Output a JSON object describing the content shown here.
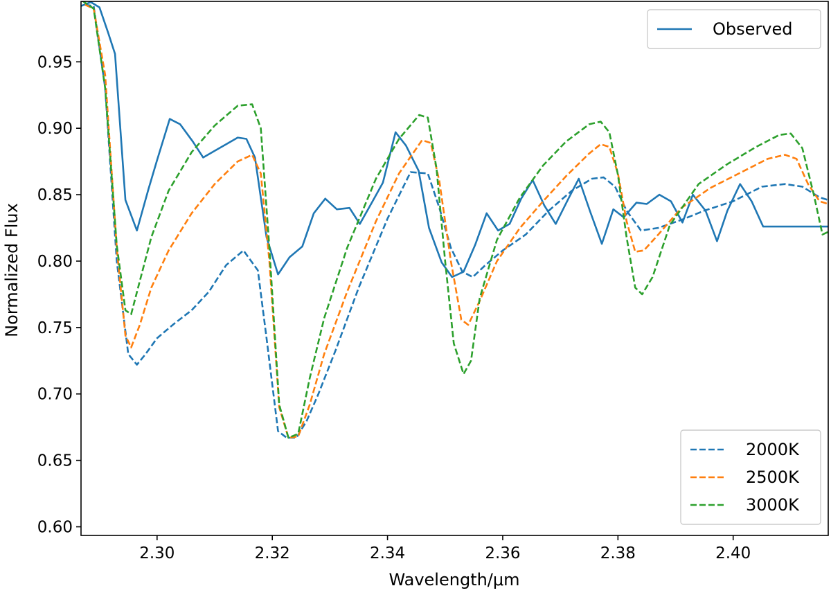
{
  "chart_data": {
    "type": "line",
    "title": "",
    "xlabel": "Wavelength/μm",
    "ylabel": "Normalized Flux",
    "xlim": [
      2.2868,
      2.4165
    ],
    "ylim": [
      0.5935,
      0.9955
    ],
    "grid": false,
    "x_ticks": [
      {
        "value": 2.3,
        "label": "2.30"
      },
      {
        "value": 2.32,
        "label": "2.32"
      },
      {
        "value": 2.34,
        "label": "2.34"
      },
      {
        "value": 2.36,
        "label": "2.36"
      },
      {
        "value": 2.38,
        "label": "2.38"
      },
      {
        "value": 2.4,
        "label": "2.40"
      }
    ],
    "y_ticks": [
      {
        "value": 0.6,
        "label": "0.60"
      },
      {
        "value": 0.65,
        "label": "0.65"
      },
      {
        "value": 0.7,
        "label": "0.70"
      },
      {
        "value": 0.75,
        "label": "0.75"
      },
      {
        "value": 0.8,
        "label": "0.80"
      },
      {
        "value": 0.85,
        "label": "0.85"
      },
      {
        "value": 0.9,
        "label": "0.90"
      },
      {
        "value": 0.95,
        "label": "0.95"
      }
    ],
    "legends": [
      {
        "placement": "top-right",
        "entries": [
          "Observed"
        ]
      },
      {
        "placement": "bottom-right",
        "entries": [
          "2000K",
          "2500K",
          "3000K"
        ]
      }
    ],
    "series": [
      {
        "name": "Observed",
        "style": "solid",
        "color": "#1f77b4",
        "x": [
          2.2868,
          2.2885,
          2.29,
          2.2915,
          2.2927,
          2.2945,
          2.2965,
          2.2985,
          2.3,
          2.3022,
          2.304,
          2.3062,
          2.308,
          2.31,
          2.312,
          2.314,
          2.3155,
          2.317,
          2.319,
          2.321,
          2.323,
          2.3252,
          2.3272,
          2.3292,
          2.3312,
          2.3334,
          2.3352,
          2.3374,
          2.3392,
          2.3414,
          2.3432,
          2.3454,
          2.3472,
          2.3494,
          2.3512,
          2.3532,
          2.3552,
          2.3572,
          2.3592,
          2.3612,
          2.3632,
          2.3652,
          2.3672,
          2.3692,
          2.3714,
          2.3732,
          2.3752,
          2.3772,
          2.3792,
          2.381,
          2.3832,
          2.385,
          2.3872,
          2.3892,
          2.3912,
          2.393,
          2.3952,
          2.3972,
          2.399,
          2.4012,
          2.4032,
          2.4052,
          2.407,
          2.4092,
          2.4112,
          2.413,
          2.4145,
          2.4165
        ],
        "y": [
          0.992,
          0.995,
          0.991,
          0.972,
          0.956,
          0.846,
          0.823,
          0.854,
          0.876,
          0.907,
          0.903,
          0.89,
          0.878,
          0.883,
          0.888,
          0.893,
          0.892,
          0.878,
          0.818,
          0.79,
          0.803,
          0.811,
          0.836,
          0.847,
          0.839,
          0.84,
          0.828,
          0.845,
          0.859,
          0.897,
          0.887,
          0.868,
          0.825,
          0.799,
          0.788,
          0.792,
          0.812,
          0.836,
          0.823,
          0.828,
          0.847,
          0.861,
          0.842,
          0.828,
          0.847,
          0.862,
          0.837,
          0.813,
          0.839,
          0.833,
          0.844,
          0.843,
          0.85,
          0.845,
          0.829,
          0.85,
          0.838,
          0.815,
          0.838,
          0.858,
          0.845,
          0.826,
          0.826,
          0.826,
          0.826,
          0.826,
          0.826,
          0.826
        ]
      },
      {
        "name": "2000K",
        "style": "dashed",
        "color": "#1f77b4",
        "x": [
          2.2875,
          2.289,
          2.291,
          2.293,
          2.295,
          2.2965,
          2.298,
          2.3,
          2.303,
          2.306,
          2.309,
          2.312,
          2.315,
          2.3175,
          2.319,
          2.321,
          2.3225,
          2.3242,
          2.326,
          2.328,
          2.331,
          2.335,
          2.34,
          2.344,
          2.347,
          2.349,
          2.351,
          2.353,
          2.3548,
          2.357,
          2.36,
          2.364,
          2.368,
          2.372,
          2.3755,
          2.3775,
          2.3795,
          2.3815,
          2.384,
          2.387,
          2.391,
          2.395,
          2.4,
          2.405,
          2.409,
          2.412,
          2.415,
          2.4165
        ],
        "y": [
          0.993,
          0.992,
          0.93,
          0.8,
          0.73,
          0.722,
          0.73,
          0.742,
          0.753,
          0.763,
          0.777,
          0.797,
          0.808,
          0.793,
          0.742,
          0.672,
          0.667,
          0.667,
          0.68,
          0.7,
          0.733,
          0.78,
          0.832,
          0.867,
          0.866,
          0.84,
          0.81,
          0.792,
          0.788,
          0.797,
          0.808,
          0.82,
          0.838,
          0.853,
          0.862,
          0.863,
          0.856,
          0.838,
          0.823,
          0.825,
          0.831,
          0.838,
          0.845,
          0.856,
          0.858,
          0.856,
          0.848,
          0.846
        ]
      },
      {
        "name": "2500K",
        "style": "dashed",
        "color": "#ff7f0e",
        "x": [
          2.2875,
          2.289,
          2.291,
          2.293,
          2.2945,
          2.2955,
          2.297,
          2.299,
          2.302,
          2.306,
          2.31,
          2.314,
          2.3165,
          2.318,
          2.3195,
          2.3212,
          2.3228,
          2.3245,
          2.3265,
          2.329,
          2.333,
          2.338,
          2.342,
          2.346,
          2.3475,
          2.349,
          2.351,
          2.3528,
          2.354,
          2.356,
          2.359,
          2.363,
          2.367,
          2.371,
          2.375,
          2.377,
          2.3785,
          2.38,
          2.3815,
          2.383,
          2.3845,
          2.387,
          2.391,
          2.396,
          2.401,
          2.406,
          2.409,
          2.411,
          2.413,
          2.415,
          2.4165
        ],
        "y": [
          0.993,
          0.99,
          0.94,
          0.81,
          0.744,
          0.735,
          0.752,
          0.78,
          0.808,
          0.836,
          0.858,
          0.875,
          0.88,
          0.866,
          0.8,
          0.69,
          0.667,
          0.668,
          0.692,
          0.73,
          0.777,
          0.83,
          0.866,
          0.891,
          0.889,
          0.86,
          0.8,
          0.756,
          0.752,
          0.77,
          0.8,
          0.825,
          0.845,
          0.864,
          0.881,
          0.888,
          0.886,
          0.866,
          0.83,
          0.807,
          0.808,
          0.82,
          0.84,
          0.855,
          0.866,
          0.877,
          0.88,
          0.877,
          0.858,
          0.845,
          0.843
        ]
      },
      {
        "name": "3000K",
        "style": "dashed",
        "color": "#2ca02c",
        "x": [
          2.287,
          2.289,
          2.291,
          2.293,
          2.2945,
          2.2955,
          2.297,
          2.299,
          2.302,
          2.306,
          2.31,
          2.314,
          2.3165,
          2.318,
          2.3195,
          2.3212,
          2.3228,
          2.3245,
          2.3265,
          2.329,
          2.333,
          2.338,
          2.342,
          2.3455,
          2.347,
          2.3485,
          2.35,
          2.3515,
          2.3532,
          2.3545,
          2.356,
          2.359,
          2.363,
          2.367,
          2.371,
          2.375,
          2.377,
          2.3785,
          2.38,
          2.3815,
          2.383,
          2.3842,
          2.386,
          2.389,
          2.394,
          2.399,
          2.404,
          2.408,
          2.41,
          2.412,
          2.414,
          2.4155,
          2.4165
        ],
        "y": [
          0.996,
          0.99,
          0.93,
          0.812,
          0.763,
          0.76,
          0.785,
          0.818,
          0.853,
          0.882,
          0.902,
          0.917,
          0.918,
          0.9,
          0.81,
          0.692,
          0.667,
          0.67,
          0.712,
          0.757,
          0.81,
          0.862,
          0.892,
          0.91,
          0.908,
          0.87,
          0.8,
          0.738,
          0.715,
          0.725,
          0.772,
          0.816,
          0.848,
          0.872,
          0.89,
          0.903,
          0.905,
          0.897,
          0.865,
          0.818,
          0.78,
          0.775,
          0.788,
          0.827,
          0.858,
          0.873,
          0.886,
          0.895,
          0.896,
          0.885,
          0.85,
          0.82,
          0.822
        ]
      }
    ]
  }
}
